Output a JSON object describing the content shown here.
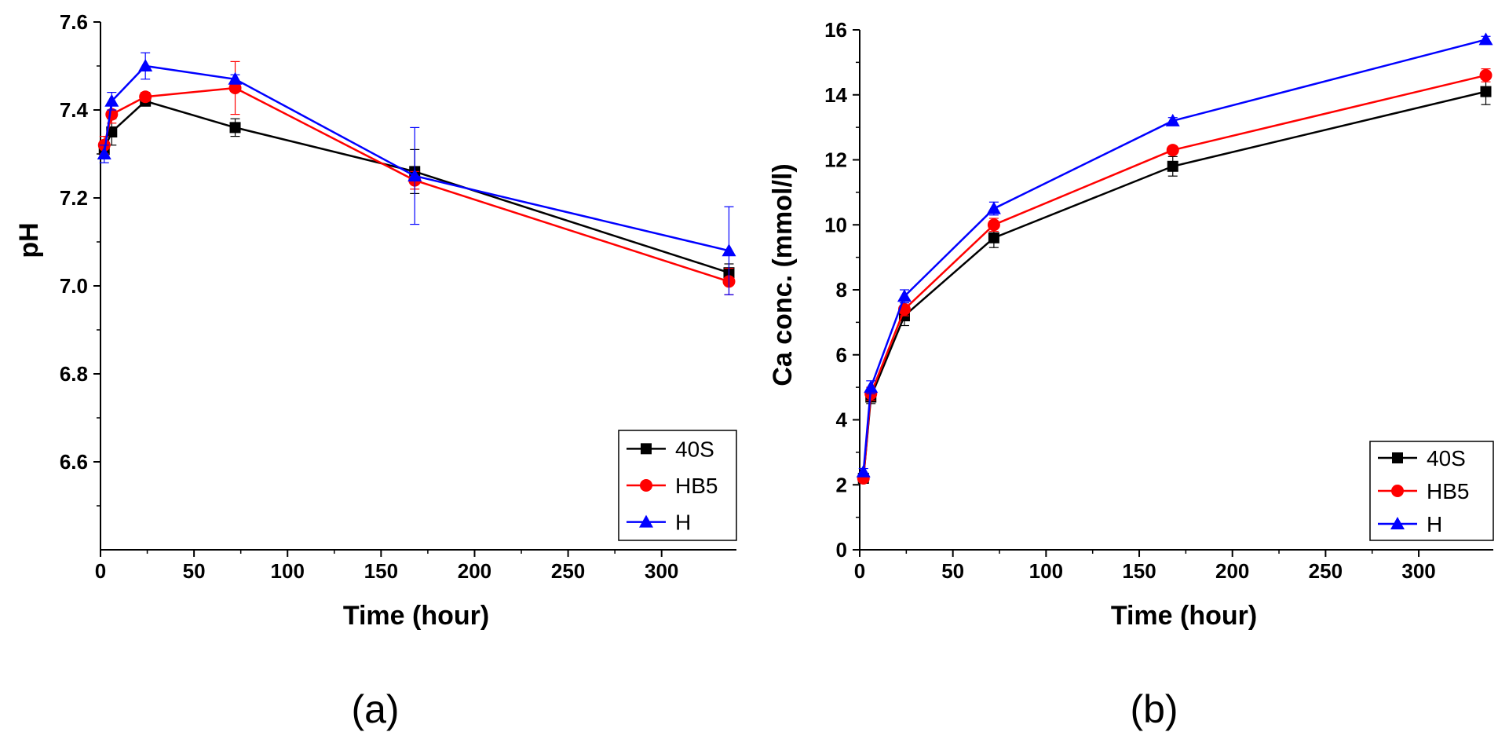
{
  "chart_data": [
    {
      "type": "line",
      "panel_label": "(a)",
      "title": "",
      "xlabel": "Time (hour)",
      "ylabel": "pH",
      "xlim": [
        0,
        340
      ],
      "ylim": [
        6.4,
        7.6
      ],
      "xticks": [
        0,
        50,
        100,
        150,
        200,
        250,
        300
      ],
      "yticks": [
        6.6,
        6.8,
        7.0,
        7.2,
        7.4,
        7.6
      ],
      "xtick_labels": [
        "0",
        "50",
        "100",
        "150",
        "200",
        "250",
        "300"
      ],
      "ytick_labels": [
        "6.6",
        "6.8",
        "7.0",
        "7.2",
        "7.4",
        "7.6"
      ],
      "legend_position": "bottom-right",
      "x": [
        2,
        6,
        24,
        72,
        168,
        336
      ],
      "series": [
        {
          "name": "40S",
          "color": "#000000",
          "marker": "square",
          "values": [
            7.31,
            7.35,
            7.42,
            7.36,
            7.26,
            7.03
          ],
          "errors": [
            0.02,
            0.03,
            0.01,
            0.02,
            0.05,
            0.02
          ]
        },
        {
          "name": "HB5",
          "color": "#ff0000",
          "marker": "circle",
          "values": [
            7.32,
            7.39,
            7.43,
            7.45,
            7.24,
            7.01
          ],
          "errors": [
            0.02,
            0.02,
            0.01,
            0.06,
            0.02,
            0.03
          ]
        },
        {
          "name": "H",
          "color": "#0000ff",
          "marker": "triangle",
          "values": [
            7.3,
            7.42,
            7.5,
            7.47,
            7.25,
            7.08
          ],
          "errors": [
            0.02,
            0.02,
            0.03,
            0.01,
            0.11,
            0.1
          ]
        }
      ]
    },
    {
      "type": "line",
      "panel_label": "(b)",
      "title": "",
      "xlabel": "Time (hour)",
      "ylabel": "Ca conc. (mmol/l)",
      "xlim": [
        0,
        340
      ],
      "ylim": [
        0,
        16
      ],
      "xticks": [
        0,
        50,
        100,
        150,
        200,
        250,
        300
      ],
      "yticks": [
        0,
        2,
        4,
        6,
        8,
        10,
        12,
        14,
        16
      ],
      "xtick_labels": [
        "0",
        "50",
        "100",
        "150",
        "200",
        "250",
        "300"
      ],
      "ytick_labels": [
        "0",
        "2",
        "4",
        "6",
        "8",
        "10",
        "12",
        "14",
        "16"
      ],
      "legend_position": "bottom-right",
      "x": [
        2,
        6,
        24,
        72,
        168,
        336
      ],
      "series": [
        {
          "name": "40S",
          "color": "#000000",
          "marker": "square",
          "values": [
            2.2,
            4.7,
            7.2,
            9.6,
            11.8,
            14.1
          ],
          "errors": [
            0.1,
            0.2,
            0.3,
            0.3,
            0.3,
            0.4
          ]
        },
        {
          "name": "HB5",
          "color": "#ff0000",
          "marker": "circle",
          "values": [
            2.2,
            4.8,
            7.4,
            10.0,
            12.3,
            14.6
          ],
          "errors": [
            0.1,
            0.2,
            0.2,
            0.2,
            0.1,
            0.2
          ]
        },
        {
          "name": "H",
          "color": "#0000ff",
          "marker": "triangle",
          "values": [
            2.4,
            5.0,
            7.8,
            10.5,
            13.2,
            15.7
          ],
          "errors": [
            0.1,
            0.2,
            0.2,
            0.2,
            0.1,
            0.1
          ]
        }
      ]
    }
  ]
}
